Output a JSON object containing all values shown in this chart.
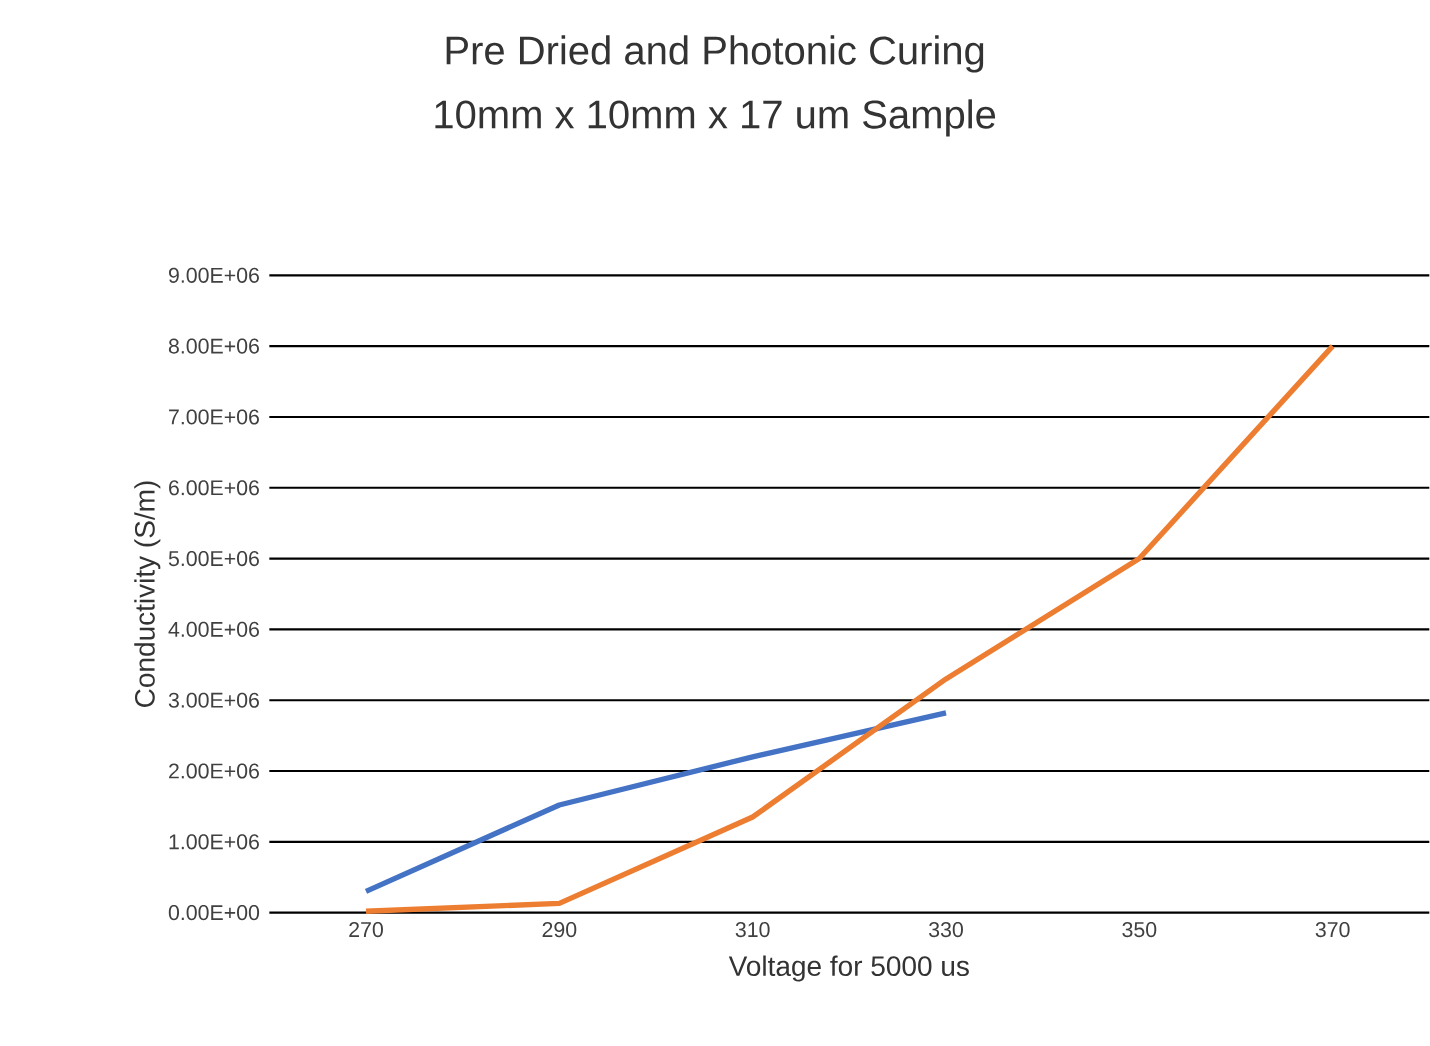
{
  "chart_data": {
    "type": "line",
    "title": "Pre Dried and Photonic Curing",
    "subtitle": "10mm x 10mm x 17 um Sample",
    "xlabel": "Voltage for 5000 us",
    "ylabel": "Conductivity (S/m)",
    "categories": [
      "270",
      "290",
      "310",
      "330",
      "350",
      "370"
    ],
    "series": [
      {
        "color": "#4472c4",
        "values": [
          300000,
          1520000,
          2200000,
          2820000,
          null,
          null
        ]
      },
      {
        "color": "#ed7d31",
        "values": [
          20000,
          130000,
          1350000,
          3300000,
          5000000,
          8000000
        ]
      }
    ],
    "ylim": [
      0,
      9000000
    ],
    "yticks": [
      {
        "value": 0,
        "label": "0.00E+00"
      },
      {
        "value": 1000000,
        "label": "1.00E+06"
      },
      {
        "value": 2000000,
        "label": "2.00E+06"
      },
      {
        "value": 3000000,
        "label": "3.00E+06"
      },
      {
        "value": 4000000,
        "label": "4.00E+06"
      },
      {
        "value": 5000000,
        "label": "5.00E+06"
      },
      {
        "value": 6000000,
        "label": "6.00E+06"
      },
      {
        "value": 7000000,
        "label": "7.00E+06"
      },
      {
        "value": 8000000,
        "label": "8.00E+06"
      },
      {
        "value": 9000000,
        "label": "9.00E+06"
      }
    ],
    "grid": "y",
    "marker": "none",
    "line_style": "solid"
  }
}
